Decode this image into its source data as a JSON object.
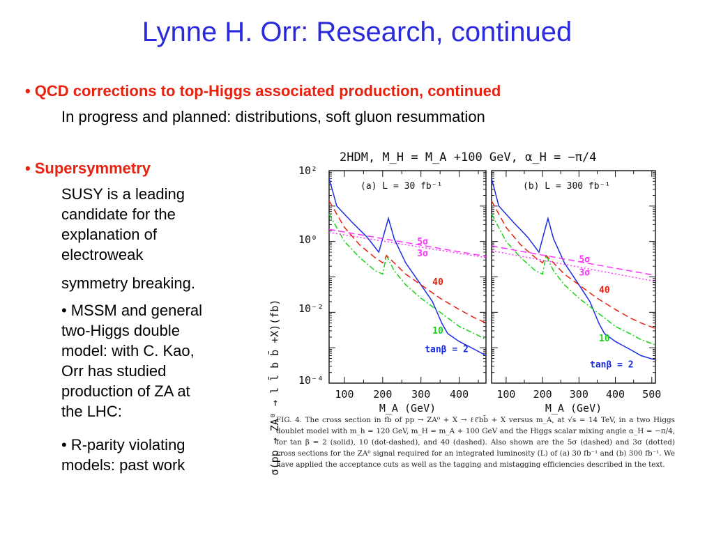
{
  "slide": {
    "title": "Lynne H. Orr: Research, continued",
    "bullet1": {
      "heading": "QCD corrections to top-Higgs associated production, continued",
      "text": "In progress and planned:  distributions, soft gluon resummation"
    },
    "bullet2": {
      "heading": "Supersymmetry",
      "lines": [
        "SUSY is a leading",
        "candidate for the",
        "explanation of",
        "electroweak",
        "symmetry breaking."
      ],
      "sub1": [
        "MSSM and general",
        "two-Higgs double",
        "model:  with C. Kao,",
        "Orr has studied",
        "production of ZA at",
        "the LHC:"
      ],
      "sub2": [
        "R-parity violating",
        "models:  past work"
      ]
    },
    "bullet_glyph": "•"
  },
  "colors": {
    "title": "#2a2adc",
    "bullet_heading": "#e8200e",
    "tanb2": "#1b2be0",
    "tanb10": "#17d417",
    "tanb40": "#e8200e",
    "sigma5": "#ff33ff",
    "sigma3": "#ff33ff"
  },
  "chart_data": {
    "type": "line",
    "title": "2HDM, M_H = M_A +100 GeV, α_H = −π/4",
    "ylabel": "σ(pp → ZA⁰ → l l̄ b b̄ +X)(fb)",
    "xlabel": "M_A (GeV)",
    "yscale": "log",
    "ylim": [
      0.0001,
      100
    ],
    "y_ticks": [
      "10²",
      "10⁰",
      "10⁻²",
      "10⁻⁴"
    ],
    "panels": [
      {
        "label": "(a) L = 30 fb⁻¹",
        "xlim": [
          60,
          470
        ],
        "x_ticks": [
          100,
          200,
          300,
          400
        ],
        "series": [
          {
            "name": "tanβ = 2",
            "style": "solid",
            "x": [
              60,
              80,
              120,
              160,
              190,
              215,
              230,
              260,
              300,
              330,
              355,
              370,
              400,
              440,
              470
            ],
            "y": [
              60,
              10,
              3.5,
              1.3,
              0.5,
              4.5,
              1.2,
              0.25,
              0.06,
              0.02,
              0.0048,
              0.0025,
              0.0015,
              0.0009,
              0.0006
            ]
          },
          {
            "name": "10",
            "style": "dot-dashed",
            "x": [
              60,
              100,
              140,
              180,
              200,
              210,
              230,
              260,
              300,
              350,
              400,
              440,
              470
            ],
            "y": [
              6,
              1,
              0.35,
              0.15,
              0.12,
              0.4,
              0.15,
              0.06,
              0.025,
              0.01,
              0.004,
              0.0025,
              0.0017
            ]
          },
          {
            "name": "40",
            "style": "dashed",
            "x": [
              60,
              100,
              140,
              180,
              200,
              210,
              230,
              260,
              300,
              350,
              400,
              440,
              470
            ],
            "y": [
              14,
              2.5,
              0.8,
              0.35,
              0.25,
              0.4,
              0.25,
              0.12,
              0.06,
              0.025,
              0.012,
              0.007,
              0.005
            ]
          },
          {
            "name": "5σ",
            "style": "dashed",
            "x": [
              60,
              470
            ],
            "y": [
              2.2,
              0.38
            ]
          },
          {
            "name": "3σ",
            "style": "dotted",
            "x": [
              60,
              470
            ],
            "y": [
              1.8,
              0.35
            ]
          }
        ],
        "annotations": [
          "5σ",
          "3σ",
          "40",
          "10",
          "tanβ = 2"
        ]
      },
      {
        "label": "(b) L = 300 fb⁻¹",
        "xlim": [
          60,
          510
        ],
        "x_ticks": [
          100,
          200,
          300,
          400,
          500
        ],
        "series": [
          {
            "name": "tanβ = 2",
            "style": "solid",
            "x": [
              60,
              80,
              120,
              160,
              190,
              215,
              230,
              260,
              300,
              330,
              355,
              370,
              400,
              440,
              470,
              510
            ],
            "y": [
              60,
              10,
              3.5,
              1.3,
              0.5,
              4.5,
              1.2,
              0.25,
              0.06,
              0.02,
              0.0048,
              0.0025,
              0.0015,
              0.0009,
              0.0006,
              0.00045
            ]
          },
          {
            "name": "10",
            "style": "dot-dashed",
            "x": [
              60,
              100,
              140,
              180,
              200,
              210,
              230,
              260,
              300,
              350,
              400,
              440,
              470,
              510
            ],
            "y": [
              6,
              1,
              0.35,
              0.15,
              0.12,
              0.4,
              0.15,
              0.06,
              0.025,
              0.01,
              0.004,
              0.0025,
              0.0017,
              0.0012
            ]
          },
          {
            "name": "40",
            "style": "dashed",
            "x": [
              60,
              100,
              140,
              180,
              200,
              210,
              230,
              260,
              300,
              350,
              400,
              440,
              470,
              510
            ],
            "y": [
              14,
              2.5,
              0.8,
              0.35,
              0.25,
              0.4,
              0.25,
              0.12,
              0.06,
              0.025,
              0.012,
              0.007,
              0.005,
              0.0035
            ]
          },
          {
            "name": "5σ",
            "style": "dashed",
            "x": [
              60,
              510
            ],
            "y": [
              0.75,
              0.11
            ]
          },
          {
            "name": "3σ",
            "style": "dotted",
            "x": [
              60,
              510
            ],
            "y": [
              0.55,
              0.075
            ]
          }
        ],
        "annotations": [
          "5σ",
          "3σ",
          "40",
          "10",
          "tanβ = 2"
        ]
      }
    ],
    "caption": "FIG. 4.  The cross section in fb of pp → ZA⁰ + X → ℓℓ̄bb̄ + X versus m_A, at √s = 14 TeV, in a two Higgs doublet model with m_h = 120 GeV, m_H = m_A + 100 GeV and the Higgs scalar mixing angle α_H = −π/4, for tan β = 2 (solid), 10 (dot-dashed), and 40 (dashed).  Also shown are the 5σ (dashed) and 3σ (dotted) cross sections for the ZA⁰ signal required for an integrated luminosity (L) of (a) 30 fb⁻¹ and (b) 300 fb⁻¹. We have applied the acceptance cuts as well as the tagging and mistagging efficiencies described in the text."
  }
}
